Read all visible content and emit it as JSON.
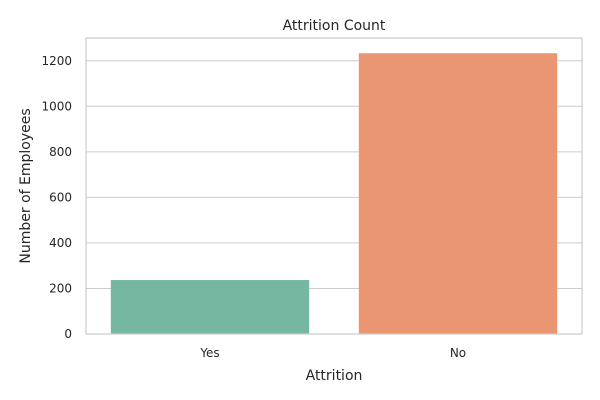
{
  "chart_data": {
    "type": "bar",
    "title": "Attrition Count",
    "xlabel": "Attrition",
    "ylabel": "Number of Employees",
    "categories": [
      "Yes",
      "No"
    ],
    "values": [
      237,
      1233
    ],
    "colors": [
      "#76b7a1",
      "#eb9673"
    ],
    "ylim": [
      0,
      1300
    ],
    "yticks": [
      0,
      200,
      400,
      600,
      800,
      1000,
      1200
    ],
    "grid": "horizontal",
    "legend": "none"
  }
}
